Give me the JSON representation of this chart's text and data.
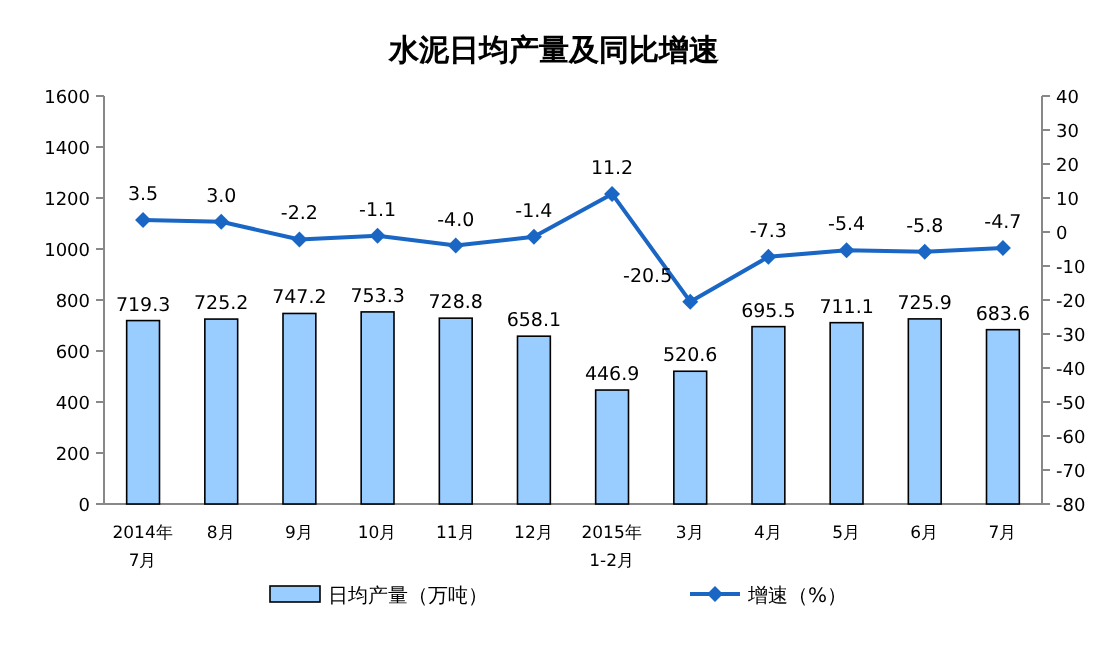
{
  "chart_data": {
    "type": "bar",
    "title": "水泥日均产量及同比增速",
    "categories": [
      "2014年\n7月",
      "8月",
      "9月",
      "10月",
      "11月",
      "12月",
      "2015年\n1-2月",
      "3月",
      "4月",
      "5月",
      "6月",
      "7月"
    ],
    "series": [
      {
        "name": "日均产量（万吨）",
        "color": "#99ccff",
        "values": [
          719.3,
          725.2,
          747.2,
          753.3,
          728.8,
          658.1,
          446.9,
          520.6,
          695.5,
          711.1,
          725.9,
          683.6
        ]
      },
      {
        "name": "增速（%）",
        "type": "line",
        "axis": "y2",
        "color": "#1a66c4",
        "marker": "diamond",
        "values": [
          3.5,
          3.0,
          -2.2,
          -1.1,
          -4.0,
          -1.4,
          11.2,
          -20.5,
          -7.3,
          -5.4,
          -5.8,
          -4.7
        ],
        "value_labels": [
          "3.5",
          "3.0",
          "-2.2",
          "-1.1",
          "-4.0",
          "-1.4",
          "11.2",
          "-20.5",
          "-7.3",
          "-5.4",
          "-5.8",
          "-4.7"
        ]
      }
    ],
    "ylim": [
      0,
      1600
    ],
    "yticks": [
      0,
      200,
      400,
      600,
      800,
      1000,
      1200,
      1400,
      1600
    ],
    "y2lim": [
      -80,
      40
    ],
    "y2ticks": [
      -80,
      -70,
      -60,
      -50,
      -40,
      -30,
      -20,
      -10,
      0,
      10,
      20,
      30,
      40
    ],
    "data_labels": true,
    "legend": "bottom",
    "grid": false
  }
}
